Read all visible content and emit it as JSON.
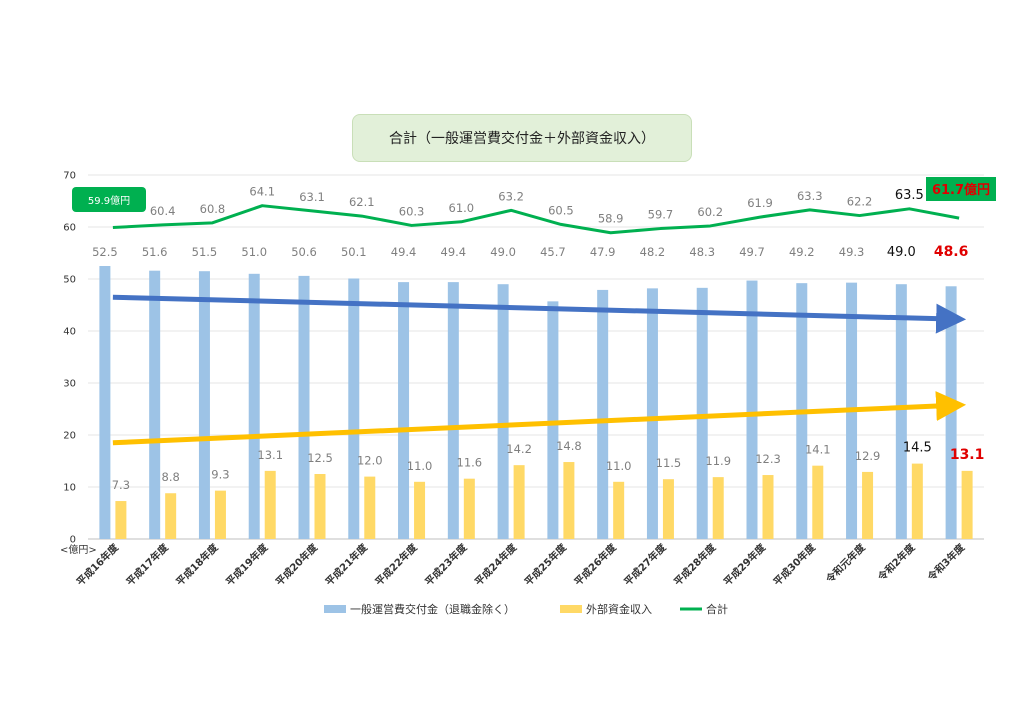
{
  "chart_data": {
    "type": "bar",
    "title": "合計（一般運営費交付金＋外部資金収入）",
    "unit_label": "<億円>",
    "ylim": [
      0,
      70
    ],
    "yticks": [
      0,
      10,
      20,
      30,
      40,
      50,
      60,
      70
    ],
    "grid": true,
    "legend_position": "bottom",
    "categories": [
      "平成16年度",
      "平成17年度",
      "平成18年度",
      "平成19年度",
      "平成20年度",
      "平成21年度",
      "平成22年度",
      "平成23年度",
      "平成24年度",
      "平成25年度",
      "平成26年度",
      "平成27年度",
      "平成28年度",
      "平成29年度",
      "平成30年度",
      "令和元年度",
      "令和2年度",
      "令和3年度"
    ],
    "series": [
      {
        "name": "一般運営費交付金（退職金除く）",
        "type": "bar",
        "color": "#9dc3e6",
        "values": [
          52.5,
          51.6,
          51.5,
          51.0,
          50.6,
          50.1,
          49.4,
          49.4,
          49.0,
          45.7,
          47.9,
          48.2,
          48.3,
          49.7,
          49.2,
          49.3,
          49.0,
          48.6
        ],
        "labels": [
          "52.5",
          "51.6",
          "51.5",
          "51.0",
          "50.6",
          "50.1",
          "49.4",
          "49.4",
          "49.0",
          "45.7",
          "47.9",
          "48.2",
          "48.3",
          "49.7",
          "49.2",
          "49.3",
          "49.0",
          "48.6"
        ]
      },
      {
        "name": "外部資金収入",
        "type": "bar",
        "color": "#ffd966",
        "values": [
          7.3,
          8.8,
          9.3,
          13.1,
          12.5,
          12.0,
          11.0,
          11.6,
          14.2,
          14.8,
          11.0,
          11.5,
          11.9,
          12.3,
          14.1,
          12.9,
          14.5,
          13.1
        ],
        "labels": [
          "7.3",
          "8.8",
          "9.3",
          "13.1",
          "12.5",
          "12.0",
          "11.0",
          "11.6",
          "14.2",
          "14.8",
          "11.0",
          "11.5",
          "11.9",
          "12.3",
          "14.1",
          "12.9",
          "14.5",
          "13.1"
        ]
      },
      {
        "name": "合計",
        "type": "line",
        "color": "#00b050",
        "values": [
          59.9,
          60.4,
          60.8,
          64.1,
          63.1,
          62.1,
          60.3,
          61.0,
          63.2,
          60.5,
          58.9,
          59.7,
          60.2,
          61.9,
          63.3,
          62.2,
          63.5,
          61.7
        ],
        "labels": [
          "",
          "60.4",
          "60.8",
          "64.1",
          "63.1",
          "62.1",
          "60.3",
          "61.0",
          "63.2",
          "60.5",
          "58.9",
          "59.7",
          "60.2",
          "61.9",
          "63.3",
          "62.2",
          "63.5",
          ""
        ]
      }
    ],
    "callouts": {
      "first_total": "59.9億円",
      "last_total": "61.7億円"
    },
    "trend_arrows": [
      {
        "series": "一般運営費交付金（退職金除く）",
        "color": "#4472c4",
        "from": 46.5,
        "to": 42.3
      },
      {
        "series": "外部資金収入",
        "color": "#ffc000",
        "from": 18.5,
        "to": 25.7
      }
    ]
  }
}
